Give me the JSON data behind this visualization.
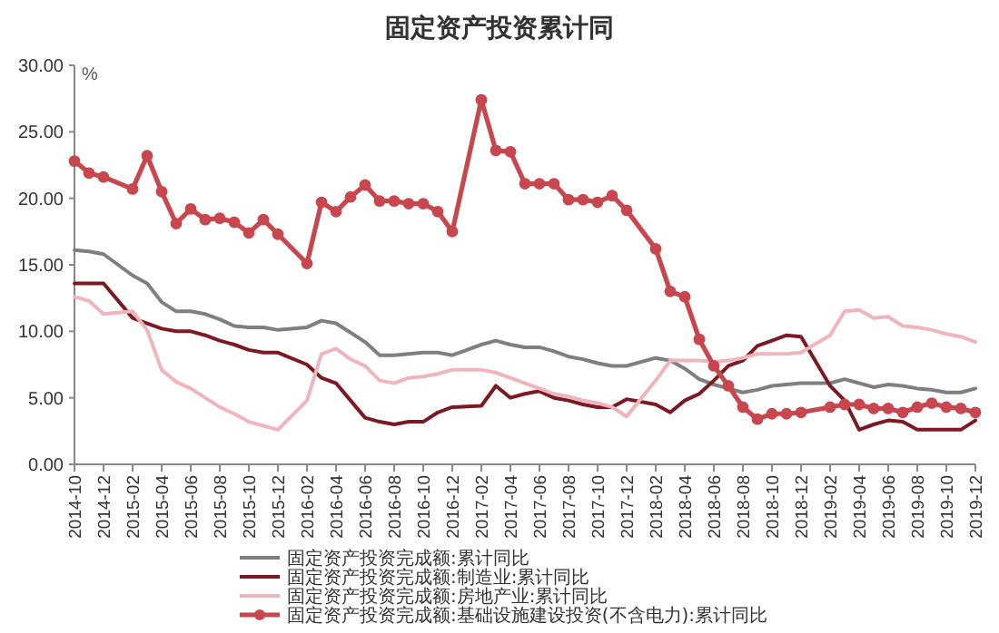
{
  "chart_data": {
    "type": "line",
    "title": "固定资产投资累计同",
    "ylabel": "%",
    "legend": "bottom",
    "grid": false,
    "x": [
      "2014-10",
      "2014-11",
      "2014-12",
      "2015-02",
      "2015-03",
      "2015-04",
      "2015-05",
      "2015-06",
      "2015-07",
      "2015-08",
      "2015-09",
      "2015-10",
      "2015-11",
      "2015-12",
      "2016-02",
      "2016-03",
      "2016-04",
      "2016-05",
      "2016-06",
      "2016-07",
      "2016-08",
      "2016-09",
      "2016-10",
      "2016-11",
      "2016-12",
      "2017-02",
      "2017-03",
      "2017-04",
      "2017-05",
      "2017-06",
      "2017-07",
      "2017-08",
      "2017-09",
      "2017-10",
      "2017-11",
      "2017-12",
      "2018-02",
      "2018-03",
      "2018-04",
      "2018-05",
      "2018-06",
      "2018-07",
      "2018-08",
      "2018-09",
      "2018-10",
      "2018-11",
      "2018-12",
      "2019-02",
      "2019-03",
      "2019-04",
      "2019-05",
      "2019-06",
      "2019-07",
      "2019-08",
      "2019-09",
      "2019-10",
      "2019-11",
      "2019-12"
    ],
    "xlim": [
      "2014-10",
      "2019-12"
    ],
    "xticks": [
      "2014-10",
      "2014-12",
      "2015-02",
      "2015-04",
      "2015-06",
      "2015-08",
      "2015-10",
      "2015-12",
      "2016-02",
      "2016-04",
      "2016-06",
      "2016-08",
      "2016-10",
      "2016-12",
      "2017-02",
      "2017-04",
      "2017-06",
      "2017-08",
      "2017-10",
      "2017-12",
      "2018-02",
      "2018-04",
      "2018-06",
      "2018-08",
      "2018-10",
      "2018-12",
      "2019-02",
      "2019-04",
      "2019-06",
      "2019-08",
      "2019-10",
      "2019-12"
    ],
    "ylim": [
      0,
      30
    ],
    "yticks": [
      {
        "value": 0,
        "label": "0.00"
      },
      {
        "value": 5,
        "label": "5.00"
      },
      {
        "value": 10,
        "label": "10.00"
      },
      {
        "value": 15,
        "label": "15.00"
      },
      {
        "value": 20,
        "label": "20.00"
      },
      {
        "value": 25,
        "label": "25.00"
      },
      {
        "value": 30,
        "label": "30.00"
      }
    ],
    "series": [
      {
        "name": "固定资产投资完成额:累计同比",
        "color": "#7f7f7f",
        "marker": "none",
        "values": [
          16.1,
          16.0,
          15.8,
          14.2,
          13.6,
          12.2,
          11.5,
          11.5,
          11.3,
          10.9,
          10.4,
          10.3,
          10.3,
          10.1,
          10.3,
          10.8,
          10.6,
          9.9,
          9.2,
          8.2,
          8.2,
          8.3,
          8.4,
          8.4,
          8.2,
          9.0,
          9.3,
          9.0,
          8.8,
          8.8,
          8.5,
          8.1,
          7.9,
          7.6,
          7.4,
          7.4,
          8.0,
          7.8,
          7.2,
          6.4,
          6.0,
          5.7,
          5.4,
          5.6,
          5.9,
          6.0,
          6.1,
          6.1,
          6.4,
          6.1,
          5.8,
          6.0,
          5.9,
          5.7,
          5.6,
          5.4,
          5.4,
          5.7
        ]
      },
      {
        "name": "固定资产投资完成额:制造业:累计同比",
        "color": "#7b1a24",
        "marker": "none",
        "values": [
          13.6,
          13.6,
          13.6,
          11.0,
          10.6,
          10.2,
          10.0,
          10.0,
          9.7,
          9.3,
          9.0,
          8.6,
          8.4,
          8.4,
          7.5,
          6.5,
          6.1,
          4.8,
          3.5,
          3.2,
          3.0,
          3.2,
          3.2,
          3.9,
          4.3,
          4.4,
          5.9,
          5.0,
          5.3,
          5.5,
          5.0,
          4.8,
          4.5,
          4.3,
          4.3,
          4.9,
          4.5,
          3.9,
          4.8,
          5.3,
          6.3,
          7.4,
          7.8,
          8.9,
          9.3,
          9.7,
          9.6,
          5.9,
          4.8,
          2.6,
          3.0,
          3.3,
          3.2,
          2.6,
          2.6,
          2.6,
          2.6,
          3.3
        ]
      },
      {
        "name": "固定资产投资完成额:房地产业:累计同比",
        "color": "#f0b4bc",
        "marker": "none",
        "values": [
          12.6,
          12.3,
          11.3,
          11.5,
          10.1,
          7.1,
          6.2,
          5.7,
          5.0,
          4.3,
          3.8,
          3.2,
          2.9,
          2.6,
          4.8,
          8.3,
          8.7,
          7.9,
          7.4,
          6.3,
          6.1,
          6.5,
          6.6,
          6.8,
          7.1,
          7.1,
          6.9,
          6.5,
          6.1,
          5.7,
          5.3,
          5.1,
          4.8,
          4.6,
          4.3,
          3.6,
          6.3,
          7.8,
          7.8,
          7.8,
          7.7,
          7.8,
          8.0,
          8.3,
          8.3,
          8.3,
          8.4,
          9.7,
          11.5,
          11.6,
          11.0,
          11.1,
          10.4,
          10.3,
          10.1,
          9.8,
          9.6,
          9.2
        ]
      },
      {
        "name": "固定资产投资完成额:基础设施建设投资(不含电力):累计同比",
        "color": "#c8474f",
        "marker": "circle",
        "values": [
          22.8,
          21.9,
          21.6,
          20.7,
          23.2,
          20.5,
          18.1,
          19.2,
          18.4,
          18.5,
          18.2,
          17.4,
          18.4,
          17.3,
          15.1,
          19.7,
          19.0,
          20.1,
          21.0,
          19.8,
          19.8,
          19.6,
          19.6,
          19.0,
          17.5,
          27.4,
          23.6,
          23.5,
          21.1,
          21.1,
          21.1,
          19.9,
          19.9,
          19.7,
          20.2,
          19.1,
          16.2,
          13.0,
          12.6,
          9.4,
          7.4,
          5.9,
          4.3,
          3.4,
          3.8,
          3.8,
          3.9,
          4.3,
          4.5,
          4.5,
          4.2,
          4.2,
          3.9,
          4.3,
          4.6,
          4.3,
          4.2,
          3.9
        ]
      }
    ]
  }
}
